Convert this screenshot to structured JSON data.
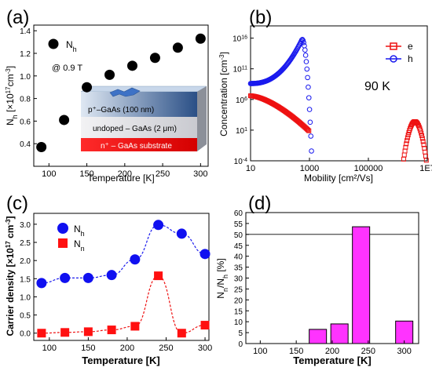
{
  "colors": {
    "black": "#000000",
    "red": "#ee1111",
    "blue": "#1a1aee",
    "blue_marker": "#1010f0",
    "red_marker": "#ff1010",
    "magenta": "#ff33ff",
    "grid": "#aaaaaa"
  },
  "chart_data": [
    {
      "panel": "(a)",
      "type": "scatter",
      "xlabel": "Temperature [K]",
      "ylabel": "N_h [×10^17 cm^-3]",
      "xlim": [
        80,
        310
      ],
      "ylim": [
        0.2,
        1.45
      ],
      "xticks": [
        "100",
        "150",
        "200",
        "250",
        "300"
      ],
      "yticks": [
        "0.4",
        "0.6",
        "0.8",
        "1.0",
        "1.2",
        "1.4"
      ],
      "legend": {
        "label": "N",
        "sub": "h",
        "position": "top-left"
      },
      "annotation": "@ 0.9 T",
      "series": [
        {
          "name": "Nh",
          "x": [
            90,
            120,
            150,
            180,
            210,
            240,
            270,
            300
          ],
          "y": [
            0.37,
            0.61,
            0.9,
            1.01,
            1.09,
            1.16,
            1.25,
            1.33
          ]
        }
      ],
      "inset_layers": [
        "p⁺–GaAs (100 nm)",
        "undoped – GaAs (2 μm)",
        "n⁺ – GaAs substrate"
      ]
    },
    {
      "panel": "(b)",
      "type": "scatter",
      "xlabel": "Mobility [cm²/Vs]",
      "ylabel": "Concentration [cm⁻³]",
      "xscale": "log",
      "yscale": "log",
      "xlim": [
        10,
        10000000
      ],
      "ylim": [
        0.0001,
        1e+18
      ],
      "xticks": [
        "10",
        "1000",
        "100000",
        "1E7"
      ],
      "annotation": "90 K",
      "legend_position": "top-right",
      "series": [
        {
          "name": "e",
          "color": "red"
        },
        {
          "name": "h",
          "color": "blue"
        }
      ]
    },
    {
      "panel": "(c)",
      "type": "scatter",
      "xlabel": "Temperature [K]",
      "ylabel": "Carrier density [×10^17 cm^-3]",
      "xlim": [
        80,
        305
      ],
      "ylim": [
        -0.2,
        3.3
      ],
      "xticks": [
        "100",
        "150",
        "200",
        "250",
        "300"
      ],
      "yticks": [
        "0.0",
        "0.5",
        "1.0",
        "1.5",
        "2.0",
        "2.5",
        "3.0"
      ],
      "series": [
        {
          "name": "Nh",
          "x": [
            90,
            120,
            150,
            180,
            210,
            240,
            270,
            300
          ],
          "y": [
            1.38,
            1.52,
            1.52,
            1.6,
            2.03,
            2.98,
            2.74,
            2.18
          ]
        },
        {
          "name": "Nn",
          "x": [
            90,
            120,
            150,
            180,
            210,
            240,
            270,
            300
          ],
          "y": [
            0.0,
            0.02,
            0.04,
            0.09,
            0.19,
            1.58,
            0.0,
            0.22
          ]
        }
      ]
    },
    {
      "panel": "(d)",
      "type": "bar",
      "xlabel": "Temperature [K]",
      "ylabel": "N_n/N_h [%]",
      "xlim": [
        80,
        320
      ],
      "ylim": [
        0,
        60
      ],
      "xticks": [
        "100",
        "150",
        "200",
        "250",
        "300"
      ],
      "yticks": [
        "0",
        "5",
        "10",
        "15",
        "20",
        "25",
        "30",
        "35",
        "40",
        "45",
        "50",
        "55",
        "60"
      ],
      "reference_line": 50,
      "x": [
        180,
        210,
        240,
        300
      ],
      "values": [
        6.5,
        9.0,
        53.5,
        10.3
      ]
    }
  ]
}
